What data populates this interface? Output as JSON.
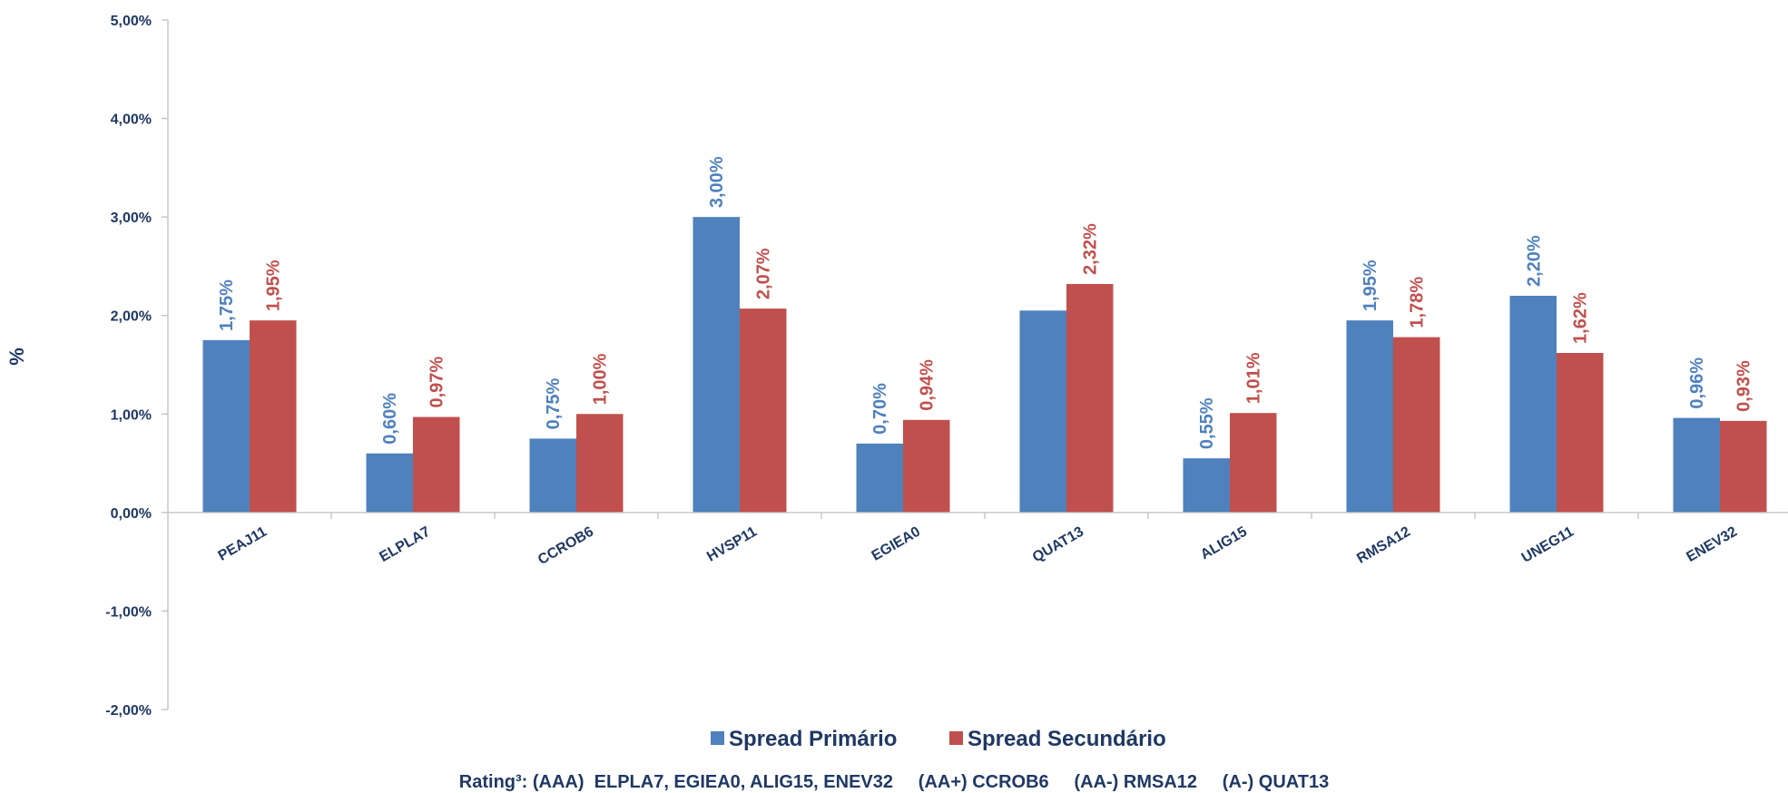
{
  "chart_data": {
    "type": "bar",
    "categories": [
      "PEAJ11",
      "ELPLA7",
      "CCROB6",
      "HVSP11",
      "EGIEA0",
      "QUAT13",
      "ALIG15",
      "RMSA12",
      "UNEG11",
      "ENEV32"
    ],
    "series": [
      {
        "name": "Spread Primário",
        "color": "#4f81bd",
        "values": [
          1.75,
          0.6,
          0.75,
          3.0,
          0.7,
          2.05,
          0.55,
          1.95,
          2.2,
          0.96
        ],
        "labels": [
          "1,75%",
          "0,60%",
          "0,75%",
          "3,00%",
          "0,70%",
          null,
          "0,55%",
          "1,95%",
          "2,20%",
          "0,96%"
        ]
      },
      {
        "name": "Spread Secundário",
        "color": "#c0504d",
        "values": [
          1.95,
          0.97,
          1.0,
          2.07,
          0.94,
          2.32,
          1.01,
          1.78,
          1.62,
          0.93
        ],
        "labels": [
          "1,95%",
          "0,97%",
          "1,00%",
          "2,07%",
          "0,94%",
          "2,32%",
          "1,01%",
          "1,78%",
          "1,62%",
          "0,93%"
        ]
      }
    ],
    "ylabel": "%",
    "ylim": [
      -2,
      5
    ],
    "yticks": [
      {
        "value": 5,
        "label": "5,00%"
      },
      {
        "value": 4,
        "label": "4,00%"
      },
      {
        "value": 3,
        "label": "3,00%"
      },
      {
        "value": 2,
        "label": "2,00%"
      },
      {
        "value": 1,
        "label": "1,00%"
      },
      {
        "value": 0,
        "label": "0,00%"
      },
      {
        "value": -1,
        "label": "-1,00%"
      },
      {
        "value": -2,
        "label": "-2,00%"
      }
    ],
    "grid": false,
    "legend_position": "bottom",
    "footnote": "Rating³: (AAA)  ELPLA7, EGIEA0, ALIG15, ENEV32     (AA+) CCROB6     (AA-) RMSA12     (A-) QUAT13"
  }
}
